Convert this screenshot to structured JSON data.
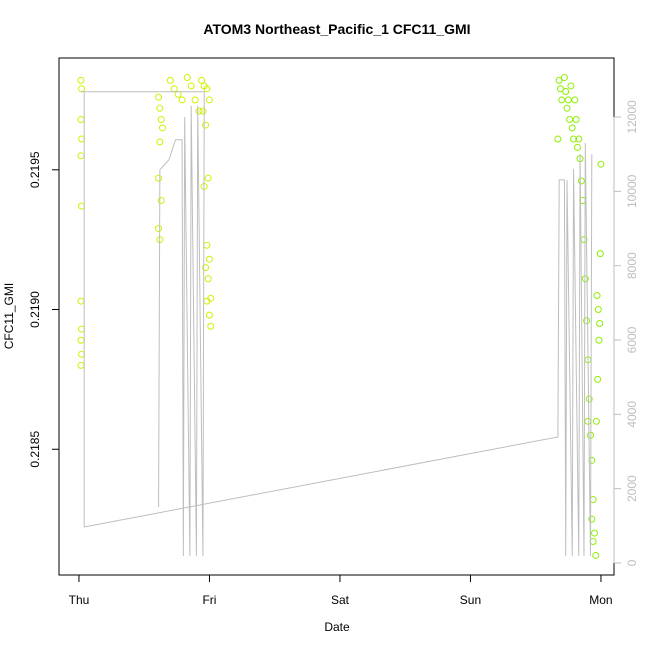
{
  "chart_data": {
    "type": "scatter",
    "title": "ATOM3 Northeast_Pacific_1 CFC11_GMI",
    "x_label": "Date",
    "y_label": "CFC11_GMI",
    "xlim": [
      -0.153,
      4.1
    ],
    "xticks": [
      {
        "value": 0,
        "label": "Thu"
      },
      {
        "value": 1,
        "label": "Fri"
      },
      {
        "value": 2,
        "label": "Sat"
      },
      {
        "value": 3,
        "label": "Sun"
      },
      {
        "value": 4,
        "label": "Mon"
      }
    ],
    "ylim": [
      0.21805,
      0.2199
    ],
    "yticks": [
      0.2185,
      {
        "value": 0.219,
        "label": "0.2190"
      },
      0.2195
    ],
    "y2lim": [
      -323,
      13588
    ],
    "y2ticks": [
      0,
      2000,
      4000,
      6000,
      8000,
      10000,
      12000
    ],
    "series": [
      {
        "type": "scatter",
        "color": "#d4f000",
        "x": [
          0.015,
          0.02,
          0.015,
          0.02,
          0.015,
          0.02,
          0.015,
          0.02,
          0.015,
          0.02,
          0.015,
          0.61,
          0.62,
          0.63,
          0.64,
          0.62,
          0.61,
          0.63,
          0.61,
          0.62,
          0.7,
          0.73,
          0.76,
          0.79,
          0.83,
          0.86,
          0.89,
          0.92,
          0.94,
          0.96,
          0.98,
          1.0,
          0.95,
          0.97,
          0.99,
          0.96,
          0.98,
          1.0,
          0.97,
          0.99,
          1.01,
          0.98,
          1.0,
          1.01
        ],
        "values": [
          0.21982,
          0.21979,
          0.21968,
          0.21961,
          0.21955,
          0.21937,
          0.21903,
          0.21893,
          0.21889,
          0.21884,
          0.2188,
          0.21976,
          0.21972,
          0.21968,
          0.21965,
          0.2196,
          0.21947,
          0.21939,
          0.21929,
          0.21925,
          0.21982,
          0.21979,
          0.21977,
          0.21975,
          0.21983,
          0.2198,
          0.21975,
          0.21971,
          0.21982,
          0.2198,
          0.21979,
          0.21975,
          0.21971,
          0.21966,
          0.21947,
          0.21944,
          0.21923,
          0.21918,
          0.21915,
          0.21911,
          0.21904,
          0.21903,
          0.21898,
          0.21894
        ]
      },
      {
        "type": "scatter",
        "color": "#8cf000",
        "x": [
          3.67,
          3.68,
          3.69,
          3.7,
          3.72,
          3.73,
          3.74,
          3.75,
          3.76,
          3.77,
          3.78,
          3.79,
          3.8,
          3.81,
          3.82,
          3.83,
          3.84,
          3.85,
          3.86,
          3.87,
          3.88,
          3.89,
          3.9,
          3.91,
          3.92,
          3.93,
          3.94,
          3.95,
          3.96,
          3.97,
          3.98,
          3.99,
          3.965,
          3.975,
          3.985,
          4.0,
          3.995,
          3.9,
          3.93,
          3.94
        ],
        "values": [
          0.21961,
          0.21982,
          0.21979,
          0.21975,
          0.21983,
          0.21978,
          0.21972,
          0.21975,
          0.21968,
          0.2198,
          0.21965,
          0.21961,
          0.21975,
          0.21968,
          0.21958,
          0.21961,
          0.21954,
          0.21946,
          0.21939,
          0.21925,
          0.21911,
          0.21896,
          0.21882,
          0.21868,
          0.21855,
          0.21846,
          0.21832,
          0.2182,
          0.21812,
          0.21905,
          0.219,
          0.21895,
          0.2186,
          0.21875,
          0.21889,
          0.21952,
          0.2192,
          0.2186,
          0.21825,
          0.21817
        ]
      },
      {
        "type": "line",
        "axis": "y2",
        "color": "#bebebe",
        "x": [
          0.61,
          0.62,
          0.69,
          0.74,
          0.79,
          0.8,
          0.81,
          0.85,
          0.86,
          0.9,
          0.91,
          0.95,
          0.96,
          0.015,
          0.04,
          0.04,
          3.67,
          3.68,
          3.72,
          3.73,
          3.74,
          3.78,
          3.79,
          3.83,
          3.84,
          3.87,
          3.88,
          3.92,
          3.93
        ],
        "values": [
          1508,
          10580,
          10850,
          11390,
          11390,
          188,
          12000,
          188,
          12300,
          188,
          12300,
          188,
          12680,
          12680,
          12680,
          969,
          3392,
          10310,
          10310,
          188,
          10310,
          188,
          10600,
          188,
          11000,
          188,
          11300,
          188,
          11000
        ]
      }
    ]
  }
}
